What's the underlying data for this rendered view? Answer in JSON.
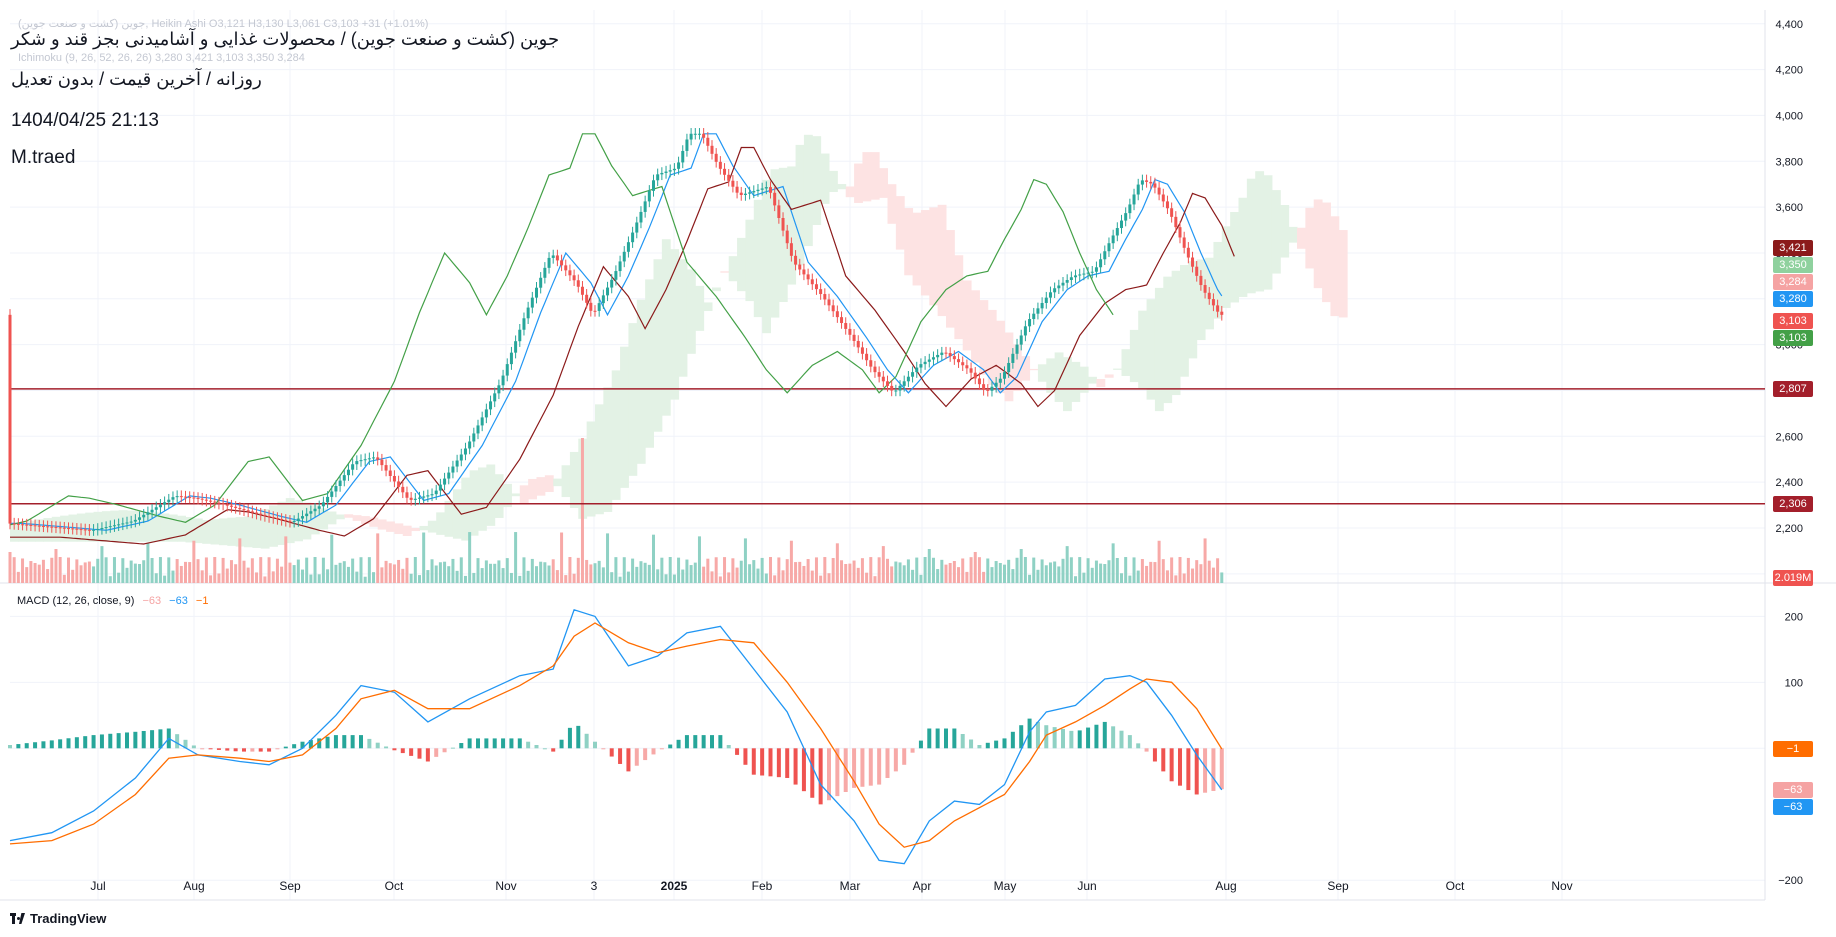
{
  "header": {
    "ghost_line1": "جوین (کشت و صنعت جوین), Heikin Ashi  O3,121  H3,130  L3,061  C3,103  +31 (+1.01%)",
    "ghost_line2": "Ichimoku (9, 26, 52, 26, 26)  3,280  3,421  3,103  3,350  3,284",
    "title": "جوین (کشت و صنعت جوین) / محصولات غذایی و آشامیدنی بجز قند و شکر",
    "subtitle": "روزانه / آخرین قیمت / بدون تعدیل",
    "datetime": "1404/04/25 21:13",
    "author": "M.traed"
  },
  "macd_legend": {
    "name": "MACD (12, 26, close, 9)",
    "hist": "−63",
    "macd": "−63",
    "signal": "−1"
  },
  "brand": "TradingView",
  "colors": {
    "up": "#26a69a",
    "down": "#ef5350",
    "up_vol": "#8fd1c4",
    "down_vol": "#f7a9a7",
    "tenkan": "#2196f3",
    "kijun": "#8b1a1a",
    "chikou": "#43a047",
    "cloud_bull": "#e3f2e5",
    "cloud_bear": "#fde3e3",
    "macd": "#2196f3",
    "signal": "#ff6d00",
    "hline": "#a31f2b"
  },
  "price_tags": [
    {
      "label": "3,421",
      "bg": "#8b1a1a"
    },
    {
      "label": "3,350",
      "bg": "#8fd19e"
    },
    {
      "label": "3,284",
      "bg": "#f5a3a3"
    },
    {
      "label": "3,280",
      "bg": "#2196f3"
    },
    {
      "label": "3,103",
      "bg": "#ef5350"
    },
    {
      "label": "3,103",
      "bg": "#43a047"
    },
    {
      "label": "2,807",
      "bg": "#a31f2b"
    },
    {
      "label": "2,306",
      "bg": "#a31f2b"
    },
    {
      "label": "2.019M",
      "bg": "#ef5350"
    }
  ],
  "macd_tags": [
    {
      "label": "−1",
      "bg": "#ff6d00"
    },
    {
      "label": "−63",
      "bg": "#f5a3a3"
    },
    {
      "label": "−63",
      "bg": "#2196f3"
    }
  ],
  "chart_data": {
    "type": "candlestick",
    "candle_style": "Heikin Ashi",
    "price_axis_ticks": [
      4400,
      4200,
      4000,
      3800,
      3600,
      3400,
      3200,
      3000,
      2800,
      2600,
      2400,
      2200,
      2000
    ],
    "price_axis_labels": [
      "4,400",
      "4,200",
      "4,000",
      "3,800",
      "3,600",
      "3,400",
      "3,200",
      "3,000",
      "2,800",
      "2,600",
      "2,400",
      "2,200",
      "2,000"
    ],
    "ylim": [
      1960,
      4460
    ],
    "time_axis": [
      "Jul",
      "Aug",
      "Sep",
      "Oct",
      "Nov",
      "3",
      "2025",
      "Feb",
      "Mar",
      "Apr",
      "May",
      "Jun",
      "Aug",
      "Sep",
      "Oct",
      "Nov"
    ],
    "horizontal_levels": [
      2807,
      2306
    ],
    "price_path": [
      [
        0,
        2220
      ],
      [
        20,
        2190
      ],
      [
        30,
        2230
      ],
      [
        40,
        2340
      ],
      [
        45,
        2330
      ],
      [
        52,
        2300
      ],
      [
        62,
        2250
      ],
      [
        68,
        2225
      ],
      [
        75,
        2300
      ],
      [
        83,
        2490
      ],
      [
        88,
        2510
      ],
      [
        96,
        2320
      ],
      [
        102,
        2350
      ],
      [
        110,
        2560
      ],
      [
        118,
        2840
      ],
      [
        124,
        3140
      ],
      [
        130,
        3400
      ],
      [
        136,
        3270
      ],
      [
        140,
        3130
      ],
      [
        145,
        3300
      ],
      [
        150,
        3510
      ],
      [
        155,
        3740
      ],
      [
        160,
        3770
      ],
      [
        163,
        3920
      ],
      [
        166,
        3920
      ],
      [
        170,
        3780
      ],
      [
        175,
        3650
      ],
      [
        182,
        3690
      ],
      [
        188,
        3360
      ],
      [
        195,
        3210
      ],
      [
        202,
        3030
      ],
      [
        207,
        2890
      ],
      [
        212,
        2790
      ],
      [
        218,
        2910
      ],
      [
        224,
        2970
      ],
      [
        230,
        2890
      ],
      [
        234,
        2790
      ],
      [
        238,
        2860
      ],
      [
        244,
        3100
      ],
      [
        250,
        3240
      ],
      [
        255,
        3300
      ],
      [
        260,
        3320
      ],
      [
        264,
        3460
      ],
      [
        268,
        3590
      ],
      [
        271,
        3720
      ],
      [
        274,
        3700
      ],
      [
        278,
        3580
      ],
      [
        282,
        3400
      ],
      [
        286,
        3240
      ],
      [
        290,
        3130
      ]
    ],
    "last_index": 290,
    "xlim": [
      0,
      420
    ],
    "ichimoku": {
      "params": "9, 26, 52, 26, 26",
      "tenkan": 3280,
      "kijun": 3421,
      "chikou": 3103,
      "span_a": 3350,
      "span_b": 3284
    },
    "volume": {
      "last": "2.019M",
      "spike_index": 137
    },
    "macd": {
      "params": "12, 26, close, 9",
      "ticks": [
        200,
        100,
        0,
        -200
      ],
      "tick_labels": [
        "200",
        "100",
        "0",
        "−200"
      ],
      "ylim": [
        -230,
        240
      ],
      "macd_path": [
        [
          0,
          -140
        ],
        [
          10,
          -128
        ],
        [
          20,
          -95
        ],
        [
          30,
          -45
        ],
        [
          38,
          15
        ],
        [
          45,
          -10
        ],
        [
          55,
          -20
        ],
        [
          62,
          -25
        ],
        [
          70,
          0
        ],
        [
          78,
          50
        ],
        [
          84,
          95
        ],
        [
          92,
          85
        ],
        [
          100,
          40
        ],
        [
          110,
          75
        ],
        [
          122,
          110
        ],
        [
          130,
          120
        ],
        [
          135,
          210
        ],
        [
          140,
          200
        ],
        [
          148,
          125
        ],
        [
          155,
          140
        ],
        [
          162,
          175
        ],
        [
          170,
          185
        ],
        [
          178,
          120
        ],
        [
          186,
          55
        ],
        [
          194,
          -55
        ],
        [
          202,
          -110
        ],
        [
          208,
          -170
        ],
        [
          214,
          -175
        ],
        [
          220,
          -110
        ],
        [
          226,
          -80
        ],
        [
          232,
          -85
        ],
        [
          238,
          -55
        ],
        [
          244,
          25
        ],
        [
          248,
          55
        ],
        [
          255,
          65
        ],
        [
          262,
          105
        ],
        [
          268,
          110
        ],
        [
          272,
          100
        ],
        [
          278,
          50
        ],
        [
          284,
          -10
        ],
        [
          290,
          -63
        ]
      ],
      "signal_path": [
        [
          0,
          -145
        ],
        [
          10,
          -140
        ],
        [
          20,
          -115
        ],
        [
          30,
          -70
        ],
        [
          38,
          -15
        ],
        [
          45,
          -10
        ],
        [
          55,
          -15
        ],
        [
          62,
          -20
        ],
        [
          70,
          -10
        ],
        [
          78,
          30
        ],
        [
          84,
          75
        ],
        [
          92,
          88
        ],
        [
          100,
          60
        ],
        [
          110,
          60
        ],
        [
          122,
          95
        ],
        [
          130,
          125
        ],
        [
          135,
          170
        ],
        [
          140,
          190
        ],
        [
          148,
          160
        ],
        [
          155,
          145
        ],
        [
          162,
          155
        ],
        [
          170,
          165
        ],
        [
          178,
          160
        ],
        [
          186,
          100
        ],
        [
          194,
          30
        ],
        [
          202,
          -50
        ],
        [
          208,
          -115
        ],
        [
          214,
          -150
        ],
        [
          220,
          -140
        ],
        [
          226,
          -110
        ],
        [
          232,
          -90
        ],
        [
          238,
          -70
        ],
        [
          244,
          -20
        ],
        [
          248,
          20
        ],
        [
          255,
          40
        ],
        [
          262,
          65
        ],
        [
          268,
          90
        ],
        [
          272,
          105
        ],
        [
          278,
          100
        ],
        [
          284,
          60
        ],
        [
          290,
          -1
        ]
      ],
      "hist_last": -63,
      "macd_last": -63,
      "signal_last": -1
    }
  }
}
